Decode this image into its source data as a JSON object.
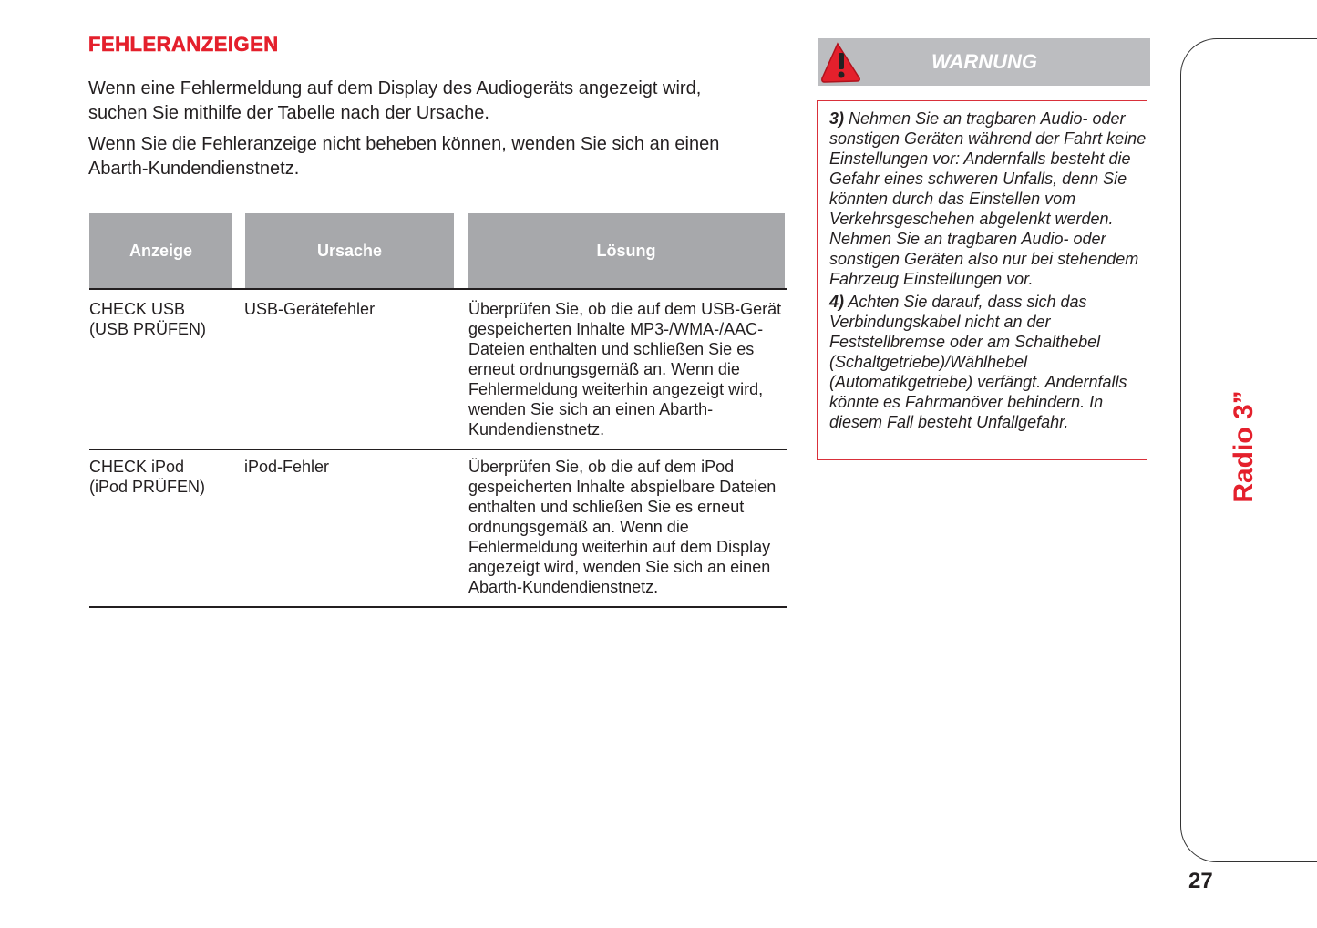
{
  "heading": "FEHLERANZEIGEN",
  "intro": [
    "Wenn eine Fehlermeldung auf dem Display des Audiogeräts angezeigt wird, suchen Sie mithilfe der Tabelle nach der Ursache.",
    "Wenn Sie die Fehleranzeige nicht beheben können, wenden Sie sich an einen Abarth-Kundendienstnetz."
  ],
  "table": {
    "headers": [
      "Anzeige",
      "Ursache",
      "Lösung"
    ],
    "rows": [
      {
        "anzeige": "CHECK USB (USB PRÜFEN)",
        "ursache": "USB-Gerätefehler",
        "loesung": "Überprüfen Sie, ob die auf dem USB-Gerät gespeicherten Inhalte MP3-/WMA-/AAC-Dateien enthalten und schließen Sie es erneut ordnungsgemäß an. Wenn die Fehlermeldung weiterhin angezeigt wird, wenden Sie sich an einen Abarth-Kundendienstnetz."
      },
      {
        "anzeige": "CHECK iPod (iPod PRÜFEN)",
        "ursache": "iPod-Fehler",
        "loesung": "Überprüfen Sie, ob die auf dem iPod gespeicherten Inhalte abspielbare Dateien enthalten und schließen Sie es erneut ordnungsgemäß an. Wenn die Fehlermeldung weiterhin auf dem Display angezeigt wird, wenden Sie sich an einen Abarth-Kundendienstnetz."
      }
    ]
  },
  "warning": {
    "title": "WARNUNG",
    "icon": "warning-triangle-icon",
    "items": [
      {
        "num": "3)",
        "text": "Nehmen Sie an tragbaren Audio- oder sonstigen Geräten während der Fahrt keine Einstellungen vor: Andernfalls besteht die Gefahr eines schweren Unfalls, denn Sie könnten durch das Einstellen vom Verkehrsgeschehen abgelenkt werden. Nehmen Sie an tragbaren Audio- oder sonstigen Geräten also nur bei stehendem Fahrzeug Einstellungen vor."
      },
      {
        "num": "4)",
        "text": "Achten Sie darauf, dass sich das Verbindungskabel nicht an der Feststellbremse oder am Schalthebel (Schaltgetriebe)/Wählhebel (Automatikgetriebe) verfängt. Andernfalls könnte es Fahrmanöver behindern. In diesem Fall besteht Unfallgefahr."
      }
    ]
  },
  "side_tab": "Radio 3”",
  "page_number": "27",
  "colors": {
    "accent": "#e4202c",
    "header_gray": "#a7a8ab"
  }
}
